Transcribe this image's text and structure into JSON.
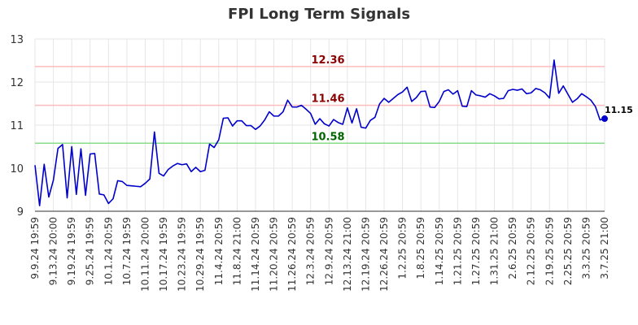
{
  "chart_data": {
    "type": "line",
    "title": "FPI Long Term Signals",
    "xlabel": "",
    "ylabel": "",
    "ylim": [
      9,
      13
    ],
    "yticks": [
      9,
      10,
      11,
      12,
      13
    ],
    "grid": true,
    "colors": {
      "line": "#0000cc",
      "upper": "#ffbbbb",
      "upper_text": "#8b0000",
      "lower": "#88dd88",
      "lower_text": "#006400",
      "grid": "#e6e6e6"
    },
    "x_tick_labels": [
      "9.9.24 19:59",
      "9.13.24 20:00",
      "9.19.24 19:59",
      "9.25.24 19:59",
      "10.1.24 20:59",
      "10.7.24 19:59",
      "10.11.24 20:00",
      "10.17.24 19:59",
      "10.23.24 19:59",
      "10.29.24 19:59",
      "11.4.24 20:59",
      "11.8.24 21:00",
      "11.14.24 20:59",
      "11.20.24 20:59",
      "11.26.24 20:59",
      "12.3.24 20:59",
      "12.9.24 20:59",
      "12.13.24 21:00",
      "12.19.24 20:59",
      "12.26.24 20:59",
      "1.2.25 20:59",
      "1.8.25 20:59",
      "1.14.25 20:59",
      "1.21.25 20:59",
      "1.27.25 20:59",
      "1.31.25 21:00",
      "2.6.25 20:59",
      "2.12.25 20:59",
      "2.19.25 20:59",
      "2.25.25 20:59",
      "3.3.25 20:59",
      "3.7.25 21:00"
    ],
    "levels": [
      {
        "value": 12.36,
        "label": "12.36",
        "kind": "upper"
      },
      {
        "value": 11.46,
        "label": "11.46",
        "kind": "upper"
      },
      {
        "value": 10.58,
        "label": "10.58",
        "kind": "lower"
      }
    ],
    "last_label": "11.15",
    "series": [
      {
        "values": [
          10.07,
          9.13,
          10.09,
          9.33,
          9.72,
          10.46,
          10.55,
          9.31,
          10.5,
          9.39,
          10.45,
          9.37,
          10.33,
          10.34,
          9.4,
          9.38,
          9.18,
          9.29,
          9.71,
          9.69,
          9.6,
          9.59,
          9.58,
          9.57,
          9.65,
          9.75,
          10.84,
          9.88,
          9.82,
          9.97,
          10.05,
          10.11,
          10.08,
          10.1,
          9.92,
          10.02,
          9.92,
          9.95,
          10.56,
          10.48,
          10.66,
          11.16,
          11.17,
          10.98,
          11.1,
          11.1,
          10.99,
          10.99,
          10.9,
          10.98,
          11.12,
          11.31,
          11.21,
          11.21,
          11.31,
          11.58,
          11.42,
          11.42,
          11.46,
          11.37,
          11.27,
          11.02,
          11.15,
          11.03,
          10.98,
          11.13,
          11.06,
          11.02,
          11.4,
          11.05,
          11.38,
          10.95,
          10.93,
          11.11,
          11.18,
          11.49,
          11.62,
          11.53,
          11.62,
          11.71,
          11.77,
          11.88,
          11.55,
          11.64,
          11.78,
          11.79,
          11.42,
          11.41,
          11.55,
          11.78,
          11.82,
          11.72,
          11.8,
          11.44,
          11.43,
          11.8,
          11.7,
          11.68,
          11.65,
          11.73,
          11.68,
          11.61,
          11.62,
          11.8,
          11.83,
          11.81,
          11.84,
          11.73,
          11.75,
          11.85,
          11.82,
          11.75,
          11.63,
          12.51,
          11.74,
          11.91,
          11.72,
          11.53,
          11.61,
          11.73,
          11.66,
          11.58,
          11.43,
          11.12,
          11.15
        ]
      }
    ]
  }
}
